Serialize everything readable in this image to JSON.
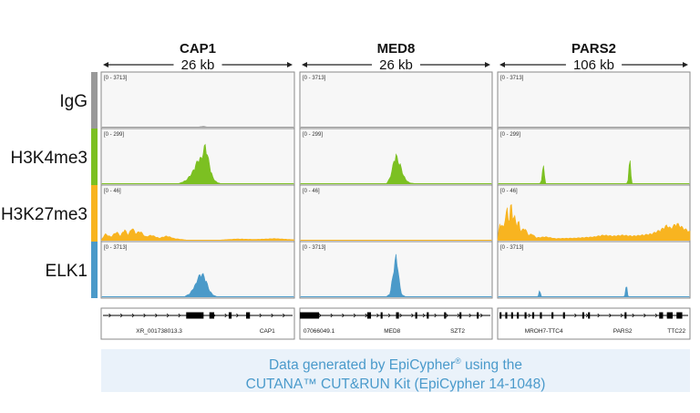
{
  "colors": {
    "IgG": "#9a9a9a",
    "H3K4me3": "#7cc022",
    "H3K27me3": "#f8b420",
    "ELK1": "#4b9ac9",
    "panel_bg": "#f7f7f7",
    "panel_border": "#8a8a8a",
    "caption_bg": "#eaf2fa",
    "caption_text": "#4a9acb"
  },
  "caption": {
    "line1_before": "Data generated by EpiCypher",
    "line1_sup": "®",
    "line1_after": " using the",
    "line2": "CUTANA™ CUT&RUN Kit (EpiCypher 14-1048)"
  },
  "chart_data": {
    "type": "area",
    "tracks": [
      {
        "name": "IgG",
        "color": "#9a9a9a",
        "range_label": "[0 - 3713]"
      },
      {
        "name": "H3K4me3",
        "color": "#7cc022",
        "range_label": "[0 - 299]"
      },
      {
        "name": "H3K27me3",
        "color": "#f8b420",
        "range_label": "[0 - 46]"
      },
      {
        "name": "ELK1",
        "color": "#4b9ac9",
        "range_label": "[0 - 3713]"
      }
    ],
    "loci": [
      {
        "name": "CAP1",
        "span": "26 kb",
        "genes": [
          {
            "label": "XR_001738013.3",
            "pos": 0.3
          },
          {
            "label": "CAP1",
            "pos": 0.86
          }
        ],
        "gene_blocks": [
          [
            0.44,
            0.53
          ],
          [
            0.56,
            0.585
          ],
          [
            0.66,
            0.675
          ],
          [
            0.75,
            0.77
          ]
        ],
        "signal": {
          "IgG": [
            [
              0.0,
              0.0
            ],
            [
              0.5,
              0.0
            ],
            [
              0.53,
              0.02
            ],
            [
              0.55,
              0.0
            ],
            [
              1.0,
              0.0
            ]
          ],
          "H3K4me3": [
            [
              0.0,
              0.0
            ],
            [
              0.4,
              0.0
            ],
            [
              0.44,
              0.08
            ],
            [
              0.47,
              0.25
            ],
            [
              0.49,
              0.45
            ],
            [
              0.5,
              0.55
            ],
            [
              0.51,
              0.6
            ],
            [
              0.52,
              0.58
            ],
            [
              0.53,
              0.82
            ],
            [
              0.54,
              0.9
            ],
            [
              0.55,
              0.7
            ],
            [
              0.56,
              0.45
            ],
            [
              0.58,
              0.12
            ],
            [
              0.6,
              0.03
            ],
            [
              0.62,
              0.0
            ],
            [
              1.0,
              0.0
            ]
          ],
          "H3K27me3": [
            [
              0.0,
              0.0
            ],
            [
              0.02,
              0.15
            ],
            [
              0.05,
              0.08
            ],
            [
              0.08,
              0.2
            ],
            [
              0.1,
              0.1
            ],
            [
              0.12,
              0.26
            ],
            [
              0.14,
              0.12
            ],
            [
              0.16,
              0.3
            ],
            [
              0.18,
              0.15
            ],
            [
              0.2,
              0.22
            ],
            [
              0.23,
              0.08
            ],
            [
              0.26,
              0.12
            ],
            [
              0.3,
              0.05
            ],
            [
              0.34,
              0.1
            ],
            [
              0.38,
              0.04
            ],
            [
              0.45,
              0.0
            ],
            [
              0.6,
              0.0
            ],
            [
              0.7,
              0.03
            ],
            [
              0.8,
              0.02
            ],
            [
              0.9,
              0.04
            ],
            [
              1.0,
              0.01
            ]
          ],
          "ELK1": [
            [
              0.0,
              0.0
            ],
            [
              0.43,
              0.0
            ],
            [
              0.46,
              0.08
            ],
            [
              0.49,
              0.3
            ],
            [
              0.5,
              0.45
            ],
            [
              0.51,
              0.5
            ],
            [
              0.52,
              0.55
            ],
            [
              0.53,
              0.5
            ],
            [
              0.54,
              0.42
            ],
            [
              0.56,
              0.15
            ],
            [
              0.58,
              0.04
            ],
            [
              0.6,
              0.0
            ],
            [
              1.0,
              0.0
            ]
          ]
        }
      },
      {
        "name": "MED8",
        "span": "26 kb",
        "genes": [
          {
            "label": "07066049.1",
            "pos": 0.1
          },
          {
            "label": "MED8",
            "pos": 0.48
          },
          {
            "label": "SZT2",
            "pos": 0.82
          }
        ],
        "gene_blocks": [
          [
            0.0,
            0.1
          ],
          [
            0.35,
            0.37
          ],
          [
            0.42,
            0.43
          ],
          [
            0.5,
            0.515
          ],
          [
            0.6,
            0.61
          ],
          [
            0.66,
            0.67
          ],
          [
            0.75,
            0.76
          ],
          [
            0.83,
            0.84
          ],
          [
            0.92,
            0.93
          ]
        ],
        "signal": {
          "IgG": [
            [
              0.0,
              0.0
            ],
            [
              1.0,
              0.0
            ]
          ],
          "H3K4me3": [
            [
              0.0,
              0.0
            ],
            [
              0.45,
              0.0
            ],
            [
              0.47,
              0.15
            ],
            [
              0.48,
              0.35
            ],
            [
              0.49,
              0.55
            ],
            [
              0.5,
              0.7
            ],
            [
              0.51,
              0.52
            ],
            [
              0.52,
              0.5
            ],
            [
              0.53,
              0.3
            ],
            [
              0.55,
              0.1
            ],
            [
              0.57,
              0.02
            ],
            [
              0.6,
              0.0
            ],
            [
              1.0,
              0.0
            ]
          ],
          "H3K27me3": [
            [
              0.0,
              0.0
            ],
            [
              1.0,
              0.0
            ]
          ],
          "ELK1": [
            [
              0.0,
              0.0
            ],
            [
              0.45,
              0.0
            ],
            [
              0.47,
              0.08
            ],
            [
              0.48,
              0.4
            ],
            [
              0.49,
              0.7
            ],
            [
              0.5,
              0.95
            ],
            [
              0.51,
              0.7
            ],
            [
              0.52,
              0.25
            ],
            [
              0.53,
              0.05
            ],
            [
              0.55,
              0.0
            ],
            [
              1.0,
              0.0
            ]
          ]
        }
      },
      {
        "name": "PARS2",
        "span": "106 kb",
        "genes": [
          {
            "label": "MROH7-TTC4",
            "pos": 0.24
          },
          {
            "label": "PARS2",
            "pos": 0.65
          },
          {
            "label": "TTC22",
            "pos": 0.93
          }
        ],
        "gene_blocks": [
          [
            0.01,
            0.02
          ],
          [
            0.04,
            0.05
          ],
          [
            0.07,
            0.08
          ],
          [
            0.1,
            0.11
          ],
          [
            0.14,
            0.15
          ],
          [
            0.18,
            0.19
          ],
          [
            0.22,
            0.23
          ],
          [
            0.28,
            0.29
          ],
          [
            0.34,
            0.35
          ],
          [
            0.44,
            0.45
          ],
          [
            0.47,
            0.48
          ],
          [
            0.66,
            0.67
          ],
          [
            0.84,
            0.86
          ],
          [
            0.88,
            0.91
          ],
          [
            0.93,
            0.96
          ]
        ],
        "signal": {
          "IgG": [
            [
              0.0,
              0.0
            ],
            [
              1.0,
              0.0
            ]
          ],
          "H3K4me3": [
            [
              0.0,
              0.0
            ],
            [
              0.22,
              0.0
            ],
            [
              0.23,
              0.1
            ],
            [
              0.235,
              0.45
            ],
            [
              0.24,
              0.48
            ],
            [
              0.245,
              0.12
            ],
            [
              0.25,
              0.0
            ],
            [
              0.67,
              0.0
            ],
            [
              0.68,
              0.1
            ],
            [
              0.685,
              0.55
            ],
            [
              0.69,
              0.58
            ],
            [
              0.695,
              0.15
            ],
            [
              0.7,
              0.0
            ],
            [
              1.0,
              0.0
            ]
          ],
          "H3K27me3": [
            [
              0.0,
              0.0
            ],
            [
              0.01,
              0.4
            ],
            [
              0.03,
              0.3
            ],
            [
              0.05,
              0.75
            ],
            [
              0.06,
              0.4
            ],
            [
              0.07,
              0.95
            ],
            [
              0.08,
              0.5
            ],
            [
              0.09,
              0.55
            ],
            [
              0.1,
              0.35
            ],
            [
              0.11,
              0.45
            ],
            [
              0.12,
              0.2
            ],
            [
              0.14,
              0.3
            ],
            [
              0.16,
              0.12
            ],
            [
              0.18,
              0.15
            ],
            [
              0.2,
              0.06
            ],
            [
              0.25,
              0.08
            ],
            [
              0.3,
              0.04
            ],
            [
              0.4,
              0.05
            ],
            [
              0.5,
              0.08
            ],
            [
              0.55,
              0.12
            ],
            [
              0.6,
              0.1
            ],
            [
              0.65,
              0.12
            ],
            [
              0.7,
              0.1
            ],
            [
              0.75,
              0.12
            ],
            [
              0.8,
              0.15
            ],
            [
              0.85,
              0.25
            ],
            [
              0.88,
              0.35
            ],
            [
              0.9,
              0.28
            ],
            [
              0.93,
              0.4
            ],
            [
              0.96,
              0.3
            ],
            [
              1.0,
              0.2
            ]
          ],
          "ELK1": [
            [
              0.0,
              0.0
            ],
            [
              0.21,
              0.0
            ],
            [
              0.215,
              0.12
            ],
            [
              0.22,
              0.15
            ],
            [
              0.225,
              0.02
            ],
            [
              0.23,
              0.0
            ],
            [
              0.66,
              0.0
            ],
            [
              0.665,
              0.2
            ],
            [
              0.67,
              0.35
            ],
            [
              0.675,
              0.05
            ],
            [
              0.68,
              0.0
            ],
            [
              1.0,
              0.0
            ]
          ]
        }
      }
    ]
  }
}
